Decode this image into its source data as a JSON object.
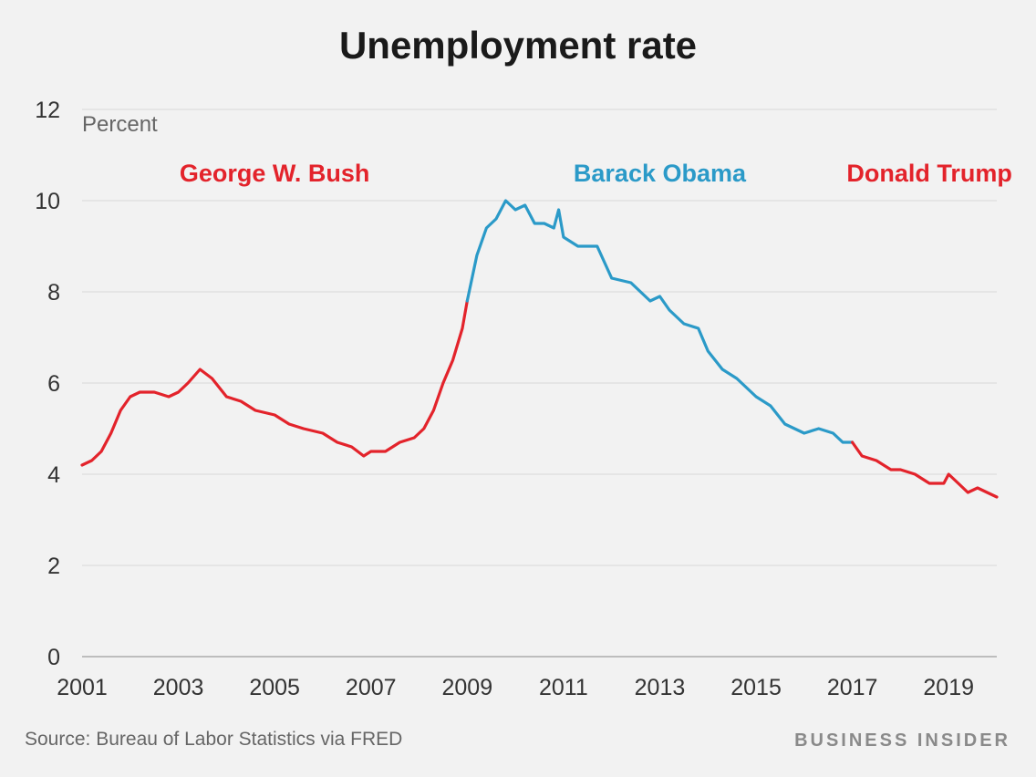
{
  "chart_data": {
    "type": "line",
    "title": "Unemployment rate",
    "ylabel": "Percent",
    "xlabel": "",
    "xlim": [
      2001,
      2020
    ],
    "ylim": [
      0,
      12
    ],
    "y_ticks": [
      "0",
      "2",
      "4",
      "6",
      "8",
      "10",
      "12"
    ],
    "x_ticks": [
      "2001",
      "2003",
      "2005",
      "2007",
      "2009",
      "2011",
      "2013",
      "2015",
      "2017",
      "2019"
    ],
    "grid": true,
    "colors": {
      "republican": "#e3232b",
      "democrat": "#2b9ac8"
    },
    "series": [
      {
        "name": "George W. Bush",
        "color": "#e3232b",
        "x": [
          2001.0,
          2001.2,
          2001.4,
          2001.6,
          2001.8,
          2002.0,
          2002.2,
          2002.5,
          2002.8,
          2003.0,
          2003.2,
          2003.45,
          2003.7,
          2004.0,
          2004.3,
          2004.6,
          2005.0,
          2005.3,
          2005.6,
          2006.0,
          2006.3,
          2006.6,
          2006.85,
          2007.0,
          2007.3,
          2007.6,
          2007.9,
          2008.1,
          2008.3,
          2008.5,
          2008.7,
          2008.9,
          2009.0
        ],
        "y": [
          4.2,
          4.3,
          4.5,
          4.9,
          5.4,
          5.7,
          5.8,
          5.8,
          5.7,
          5.8,
          6.0,
          6.3,
          6.1,
          5.7,
          5.6,
          5.4,
          5.3,
          5.1,
          5.0,
          4.9,
          4.7,
          4.6,
          4.4,
          4.5,
          4.5,
          4.7,
          4.8,
          5.0,
          5.4,
          6.0,
          6.5,
          7.2,
          7.8
        ]
      },
      {
        "name": "Barack Obama",
        "color": "#2b9ac8",
        "x": [
          2009.0,
          2009.2,
          2009.4,
          2009.6,
          2009.8,
          2010.0,
          2010.2,
          2010.4,
          2010.6,
          2010.8,
          2010.9,
          2011.0,
          2011.3,
          2011.7,
          2012.0,
          2012.4,
          2012.8,
          2013.0,
          2013.2,
          2013.5,
          2013.8,
          2014.0,
          2014.3,
          2014.6,
          2015.0,
          2015.3,
          2015.6,
          2016.0,
          2016.3,
          2016.6,
          2016.8,
          2017.0
        ],
        "y": [
          7.8,
          8.8,
          9.4,
          9.6,
          10.0,
          9.8,
          9.9,
          9.5,
          9.5,
          9.4,
          9.8,
          9.2,
          9.0,
          9.0,
          8.3,
          8.2,
          7.8,
          7.9,
          7.6,
          7.3,
          7.2,
          6.7,
          6.3,
          6.1,
          5.7,
          5.5,
          5.1,
          4.9,
          5.0,
          4.9,
          4.7,
          4.7
        ]
      },
      {
        "name": "Donald Trump",
        "color": "#e3232b",
        "x": [
          2017.0,
          2017.2,
          2017.5,
          2017.8,
          2018.0,
          2018.3,
          2018.6,
          2018.9,
          2019.0,
          2019.2,
          2019.4,
          2019.6,
          2019.8,
          2020.0
        ],
        "y": [
          4.7,
          4.4,
          4.3,
          4.1,
          4.1,
          4.0,
          3.8,
          3.8,
          4.0,
          3.8,
          3.6,
          3.7,
          3.6,
          3.5
        ]
      }
    ],
    "annotations": [
      {
        "text": "George W. Bush",
        "x": 2005.0,
        "y": 10.6,
        "color": "#e3232b"
      },
      {
        "text": "Barack Obama",
        "x": 2013.0,
        "y": 10.6,
        "color": "#2b9ac8"
      },
      {
        "text": "Donald Trump",
        "x": 2018.6,
        "y": 10.6,
        "color": "#e3232b"
      }
    ]
  },
  "source": "Source: Bureau of Labor Statistics via FRED",
  "brand": "BUSINESS INSIDER"
}
